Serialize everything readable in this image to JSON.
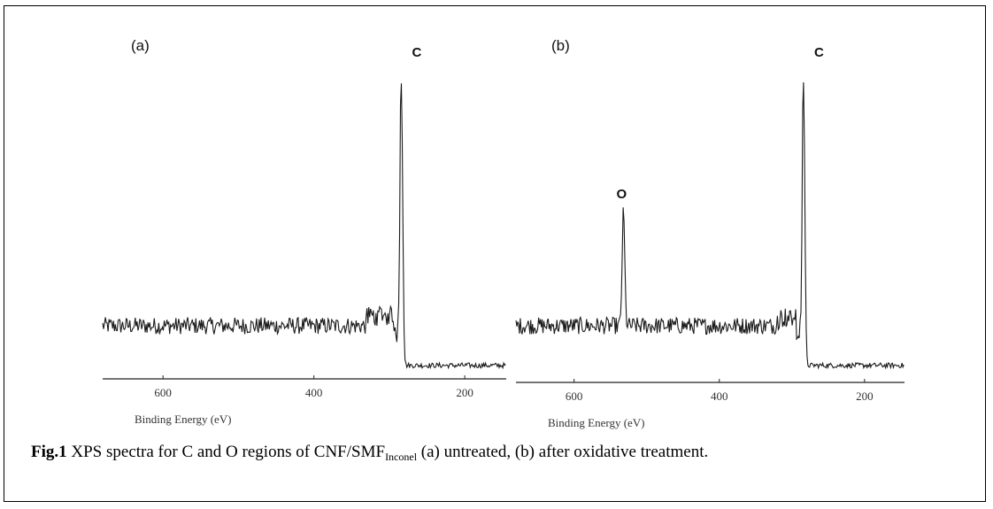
{
  "figure": {
    "caption_prefix": "Fig.1",
    "caption_text": " XPS spectra for C and O regions of CNF/SMF",
    "caption_sub": "Inconel",
    "caption_suffix": "  (a) untreated, (b) after oxidative treatment."
  },
  "chart_data": [
    {
      "type": "line",
      "panel_label": "(a)",
      "xlabel": "Binding Energy (eV)",
      "ylabel": "",
      "x_direction": "reversed",
      "xlim": [
        680,
        145
      ],
      "xticks": [
        600,
        400,
        200
      ],
      "grid": false,
      "baseline_before_peak": 0.16,
      "baseline_after_peak": 0.02,
      "noise_amplitude": 0.03,
      "peaks": [
        {
          "label": "C",
          "x": 284,
          "height": 1.0,
          "width": 2.5
        }
      ],
      "step_region": {
        "from": 330,
        "to": 288,
        "rise": 0.05
      }
    },
    {
      "type": "line",
      "panel_label": "(b)",
      "xlabel": "Binding Energy (eV)",
      "ylabel": "",
      "x_direction": "reversed",
      "xlim": [
        680,
        145
      ],
      "xticks": [
        600,
        400,
        200
      ],
      "grid": false,
      "baseline_before_peak": 0.16,
      "baseline_after_peak": 0.02,
      "noise_amplitude": 0.03,
      "peaks": [
        {
          "label": "O",
          "x": 532,
          "height": 0.4,
          "width": 2.5
        },
        {
          "label": "C",
          "x": 284,
          "height": 1.0,
          "width": 2.5
        }
      ],
      "step_region": {
        "from": 320,
        "to": 288,
        "rise": 0.04
      }
    }
  ]
}
